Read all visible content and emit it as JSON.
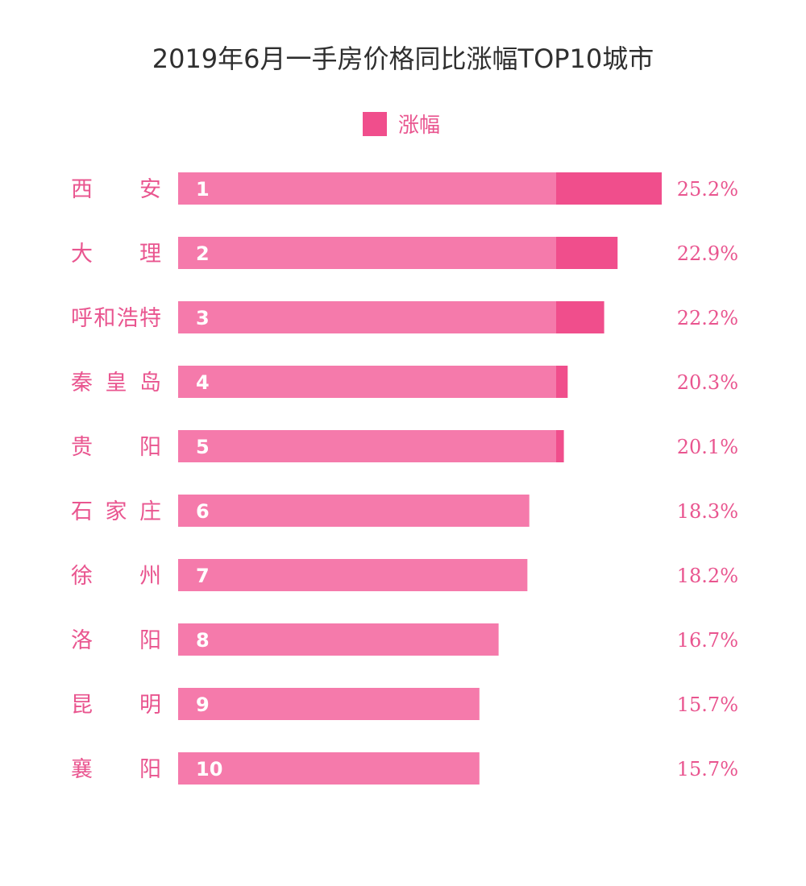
{
  "chart_data": {
    "type": "bar",
    "orientation": "horizontal",
    "title": "2019年6月一手房价格同比涨幅TOP10城市",
    "legend": {
      "position": "top-center",
      "entries": [
        {
          "name": "涨幅",
          "color": "#f04e8c"
        }
      ]
    },
    "categories": [
      "西　安",
      "大　理",
      "呼和浩特",
      "秦皇岛",
      "贵　阳",
      "石家庄",
      "徐　州",
      "洛　阳",
      "昆　明",
      "襄　阳"
    ],
    "ranks": [
      "1",
      "2",
      "3",
      "4",
      "5",
      "6",
      "7",
      "8",
      "9",
      "10"
    ],
    "series": [
      {
        "name": "涨幅",
        "values": [
          25.2,
          22.9,
          22.2,
          20.3,
          20.1,
          18.3,
          18.2,
          16.7,
          15.7,
          15.7
        ],
        "value_labels": [
          "25.2%",
          "22.9%",
          "22.2%",
          "20.3%",
          "20.1%",
          "18.3%",
          "18.2%",
          "16.7%",
          "15.7%",
          "15.7%"
        ]
      }
    ],
    "unit": "%",
    "grid": false
  },
  "colors": {
    "title": "#2f2f2f",
    "bar_light": "#f57aab",
    "bar_dark": "#f04e8c",
    "label_pink": "#e9558f",
    "rank_text": "#ffffff"
  }
}
